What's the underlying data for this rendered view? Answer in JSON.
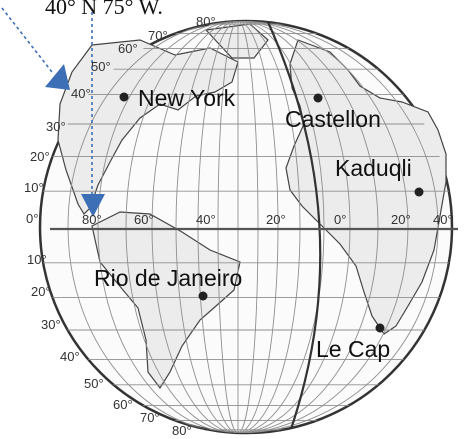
{
  "caption": "40° N 75° W.",
  "colors": {
    "grid": "#8f8f8f",
    "outline": "#333333",
    "equator": "#555555",
    "meridian": "#333333",
    "land": "#ececec",
    "arrow": "#3d6fb6",
    "dot": "#222222"
  },
  "cities": [
    {
      "name": "New York"
    },
    {
      "name": "Castellon"
    },
    {
      "name": "Kaduqli"
    },
    {
      "name": "Rio de Janeiro"
    },
    {
      "name": "Le Cap"
    }
  ],
  "latitude_ticks_north": [
    "80°",
    "70°",
    "60°",
    "50°",
    "40°",
    "30°",
    "20°",
    "10°"
  ],
  "equator_label": "0°",
  "latitude_ticks_south": [
    "10°",
    "20°",
    "30°",
    "40°",
    "50°",
    "60°",
    "70°",
    "80°"
  ],
  "longitude_ticks": [
    "80°",
    "60°",
    "40°",
    "20°",
    "0°",
    "20°",
    "40°"
  ],
  "icons": {
    "arrow": "pointer-arrow-icon",
    "city_marker": "city-dot-icon"
  }
}
